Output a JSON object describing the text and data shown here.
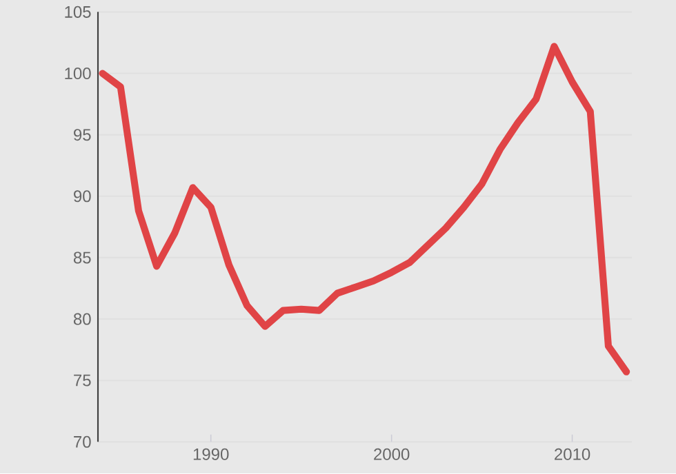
{
  "chart_data": {
    "type": "line",
    "x": [
      1984,
      1985,
      1986,
      1987,
      1988,
      1989,
      1990,
      1991,
      1992,
      1993,
      1994,
      1995,
      1996,
      1997,
      1998,
      1999,
      2000,
      2001,
      2002,
      2003,
      2004,
      2005,
      2006,
      2007,
      2008,
      2009,
      2010,
      2011,
      2012,
      2013
    ],
    "series": [
      {
        "color": "#e04446",
        "values": [
          100,
          98.9,
          88.8,
          84.3,
          87,
          90.7,
          89.1,
          84.4,
          81.1,
          79.4,
          80.7,
          80.8,
          80.7,
          82.1,
          82.6,
          83.1,
          83.8,
          84.6,
          86,
          87.4,
          89.1,
          91,
          93.8,
          96,
          97.9,
          102.2,
          99.3,
          96.9,
          77.8,
          75.7
        ]
      }
    ],
    "xlim": [
      1983.75,
      2013.3
    ],
    "ylim": [
      70,
      105
    ],
    "xticks": [
      1990,
      2000,
      2010
    ],
    "yticks": [
      70,
      75,
      80,
      85,
      90,
      95,
      100,
      105
    ],
    "grid": "y",
    "marker": "none",
    "line_style": "solid"
  }
}
